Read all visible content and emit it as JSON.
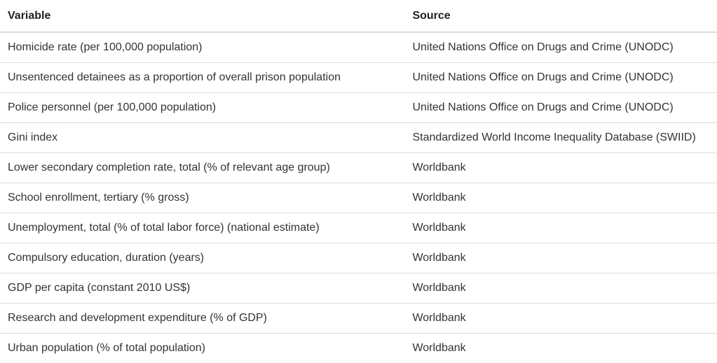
{
  "table": {
    "headers": {
      "variable": "Variable",
      "source": "Source"
    },
    "rows": [
      {
        "variable": "Homicide rate (per 100,000 population)",
        "source": "United Nations Office on Drugs and Crime (UNODC)"
      },
      {
        "variable": "Unsentenced detainees as a proportion of overall prison population",
        "source": "United Nations Office on Drugs and Crime (UNODC)"
      },
      {
        "variable": "Police personnel (per 100,000 population)",
        "source": "United Nations Office on Drugs and Crime (UNODC)"
      },
      {
        "variable": "Gini index",
        "source": "Standardized World Income Inequality Database (SWIID)"
      },
      {
        "variable": "Lower secondary completion rate, total (% of relevant age group)",
        "source": "Worldbank"
      },
      {
        "variable": "School enrollment, tertiary (% gross)",
        "source": "Worldbank"
      },
      {
        "variable": "Unemployment, total (% of total labor force) (national estimate)",
        "source": "Worldbank"
      },
      {
        "variable": "Compulsory education, duration (years)",
        "source": "Worldbank"
      },
      {
        "variable": "GDP per capita (constant 2010 US$)",
        "source": "Worldbank"
      },
      {
        "variable": "Research and development expenditure (% of GDP)",
        "source": "Worldbank"
      },
      {
        "variable": "Urban population (% of total population)",
        "source": "Worldbank"
      }
    ]
  }
}
